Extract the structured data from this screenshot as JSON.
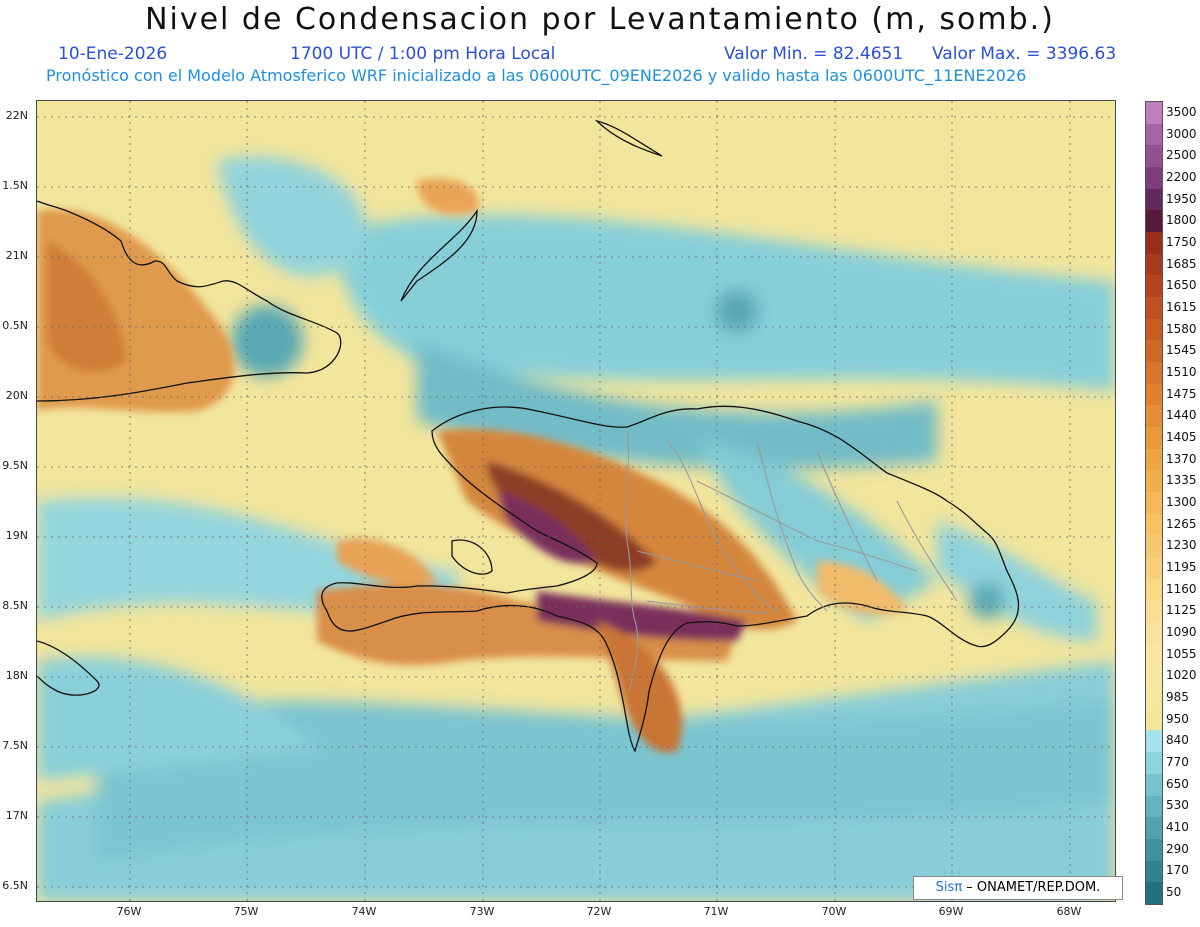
{
  "header": {
    "title": "Nivel de Condensacion por Levantamiento (m, somb.)",
    "date": "10-Ene-2026",
    "time": "1700 UTC / 1:00 pm Hora Local",
    "min_label": "Valor Min. = 82.4651",
    "max_label": "Valor Max. = 3396.63",
    "model_line": "Pronóstico con el Modelo Atmosferico WRF inicializado a las 0600UTC_09ENE2026 y valido hasta las 0600UTC_11ENE2026"
  },
  "map": {
    "lat_labels": [
      "22N",
      "1.5N",
      "21N",
      "0.5N",
      "20N",
      "9.5N",
      "19N",
      "8.5N",
      "18N",
      "7.5N",
      "17N",
      "6.5N"
    ],
    "lon_labels": [
      "76W",
      "75W",
      "74W",
      "73W",
      "72W",
      "71W",
      "70W",
      "69W",
      "68W"
    ],
    "lat_extent": [
      16.4,
      22.1
    ],
    "lon_extent": [
      -76.75,
      -67.35
    ]
  },
  "credit": {
    "prefix": "Sis",
    "symbol": "π",
    "suffix": "– ONAMET/REP.DOM."
  },
  "colorbar": {
    "labels": [
      "3500",
      "3000",
      "2500",
      "2200",
      "1950",
      "1800",
      "1750",
      "1685",
      "1650",
      "1615",
      "1580",
      "1545",
      "1510",
      "1475",
      "1440",
      "1405",
      "1370",
      "1335",
      "1300",
      "1265",
      "1230",
      "1195",
      "1160",
      "1125",
      "1090",
      "1055",
      "1020",
      "985",
      "950",
      "840",
      "770",
      "650",
      "530",
      "410",
      "290",
      "170",
      "50"
    ],
    "colors": [
      "#c07ec0",
      "#a864aa",
      "#925092",
      "#7c3c7e",
      "#652a5c",
      "#581a3a",
      "#9a2e1a",
      "#a83a1e",
      "#b44420",
      "#bf5022",
      "#c85c24",
      "#d06828",
      "#d8742c",
      "#e08030",
      "#e58c36",
      "#ea983c",
      "#eea444",
      "#f1ae4e",
      "#f4b858",
      "#f6c064",
      "#f7c870",
      "#f8d07c",
      "#f9d888",
      "#f9de94",
      "#f8e2a0",
      "#f7e6a6",
      "#f5e8a4",
      "#f3e8a0",
      "#f1e69a",
      "#a6e2ea",
      "#8ed2dc",
      "#78c2cc",
      "#64b2bc",
      "#52a2ae",
      "#4092a0",
      "#308292",
      "#247080"
    ]
  }
}
